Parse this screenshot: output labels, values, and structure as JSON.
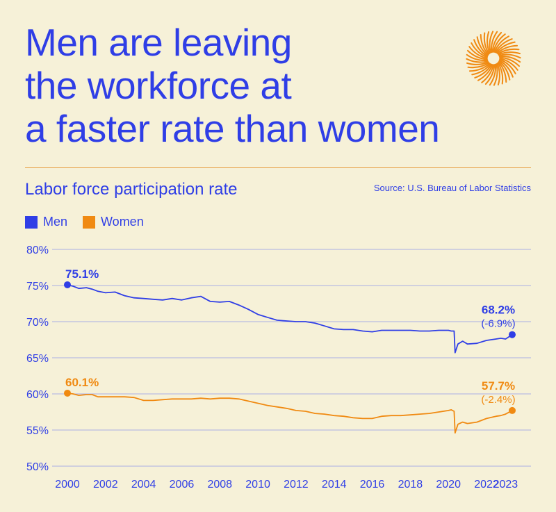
{
  "header": {
    "title_lines": [
      "Men are leaving",
      "the workforce at",
      "a faster rate than women"
    ],
    "subtitle": "Labor force participation rate",
    "source": "Source: U.S. Bureau of Labor Statistics"
  },
  "colors": {
    "men": "#2f3ee6",
    "women": "#f08a12",
    "background": "#f6f1d8",
    "rule": "#e8a146",
    "logo": "#f08a12"
  },
  "icons": {
    "logo": "sunburst-logo-icon"
  },
  "legend": [
    {
      "label": "Men",
      "color": "#2f3ee6"
    },
    {
      "label": "Women",
      "color": "#f08a12"
    }
  ],
  "chart_data": {
    "type": "line",
    "title": "Labor force participation rate",
    "xlabel": "",
    "ylabel": "",
    "xlim": [
      2000,
      2023.35
    ],
    "ylim": [
      50,
      80
    ],
    "yticks": [
      80,
      75,
      70,
      65,
      60,
      55,
      50
    ],
    "ytick_labels": [
      "80%",
      "75%",
      "70%",
      "65%",
      "60%",
      "55%",
      "50%"
    ],
    "xticks": [
      2000,
      2002,
      2004,
      2006,
      2008,
      2010,
      2012,
      2014,
      2016,
      2018,
      2020,
      2022,
      2023
    ],
    "xtick_labels": [
      "2000",
      "2002",
      "2004",
      "2006",
      "2008",
      "2010",
      "2012",
      "2014",
      "2016",
      "2018",
      "2020",
      "2022",
      "2023"
    ],
    "grid": true,
    "series": [
      {
        "name": "Men",
        "color": "#2f3ee6",
        "points": [
          [
            2000.0,
            75.1
          ],
          [
            2000.3,
            74.9
          ],
          [
            2000.6,
            74.6
          ],
          [
            2001.0,
            74.7
          ],
          [
            2001.3,
            74.5
          ],
          [
            2001.6,
            74.2
          ],
          [
            2002.0,
            74.0
          ],
          [
            2002.5,
            74.1
          ],
          [
            2003.0,
            73.6
          ],
          [
            2003.5,
            73.3
          ],
          [
            2004.0,
            73.2
          ],
          [
            2004.5,
            73.1
          ],
          [
            2005.0,
            73.0
          ],
          [
            2005.5,
            73.2
          ],
          [
            2006.0,
            73.0
          ],
          [
            2006.5,
            73.3
          ],
          [
            2007.0,
            73.5
          ],
          [
            2007.5,
            72.8
          ],
          [
            2008.0,
            72.7
          ],
          [
            2008.5,
            72.8
          ],
          [
            2009.0,
            72.3
          ],
          [
            2009.5,
            71.7
          ],
          [
            2010.0,
            71.0
          ],
          [
            2010.5,
            70.6
          ],
          [
            2011.0,
            70.2
          ],
          [
            2011.5,
            70.1
          ],
          [
            2012.0,
            70.0
          ],
          [
            2012.5,
            70.0
          ],
          [
            2013.0,
            69.8
          ],
          [
            2013.5,
            69.4
          ],
          [
            2014.0,
            69.0
          ],
          [
            2014.5,
            68.9
          ],
          [
            2015.0,
            68.9
          ],
          [
            2015.5,
            68.7
          ],
          [
            2016.0,
            68.6
          ],
          [
            2016.5,
            68.8
          ],
          [
            2017.0,
            68.8
          ],
          [
            2017.5,
            68.8
          ],
          [
            2018.0,
            68.8
          ],
          [
            2018.5,
            68.7
          ],
          [
            2019.0,
            68.7
          ],
          [
            2019.5,
            68.8
          ],
          [
            2020.0,
            68.8
          ],
          [
            2020.15,
            68.7
          ],
          [
            2020.3,
            68.7
          ],
          [
            2020.35,
            65.7
          ],
          [
            2020.5,
            66.9
          ],
          [
            2020.75,
            67.3
          ],
          [
            2021.0,
            66.9
          ],
          [
            2021.5,
            67.0
          ],
          [
            2022.0,
            67.4
          ],
          [
            2022.5,
            67.6
          ],
          [
            2022.75,
            67.7
          ],
          [
            2023.0,
            67.6
          ],
          [
            2023.35,
            68.2
          ]
        ],
        "start_label": "75.1%",
        "end_label": "68.2%",
        "change_label": "(-6.9%)"
      },
      {
        "name": "Women",
        "color": "#f08a12",
        "points": [
          [
            2000.0,
            60.1
          ],
          [
            2000.3,
            60.0
          ],
          [
            2000.6,
            59.8
          ],
          [
            2001.0,
            59.9
          ],
          [
            2001.3,
            59.9
          ],
          [
            2001.6,
            59.6
          ],
          [
            2002.0,
            59.6
          ],
          [
            2002.5,
            59.6
          ],
          [
            2003.0,
            59.6
          ],
          [
            2003.5,
            59.5
          ],
          [
            2004.0,
            59.1
          ],
          [
            2004.5,
            59.1
          ],
          [
            2005.0,
            59.2
          ],
          [
            2005.5,
            59.3
          ],
          [
            2006.0,
            59.3
          ],
          [
            2006.5,
            59.3
          ],
          [
            2007.0,
            59.4
          ],
          [
            2007.5,
            59.3
          ],
          [
            2008.0,
            59.4
          ],
          [
            2008.5,
            59.4
          ],
          [
            2009.0,
            59.3
          ],
          [
            2009.5,
            59.0
          ],
          [
            2010.0,
            58.7
          ],
          [
            2010.5,
            58.4
          ],
          [
            2011.0,
            58.2
          ],
          [
            2011.5,
            58.0
          ],
          [
            2012.0,
            57.7
          ],
          [
            2012.5,
            57.6
          ],
          [
            2013.0,
            57.3
          ],
          [
            2013.5,
            57.2
          ],
          [
            2014.0,
            57.0
          ],
          [
            2014.5,
            56.9
          ],
          [
            2015.0,
            56.7
          ],
          [
            2015.5,
            56.6
          ],
          [
            2016.0,
            56.6
          ],
          [
            2016.5,
            56.9
          ],
          [
            2017.0,
            57.0
          ],
          [
            2017.5,
            57.0
          ],
          [
            2018.0,
            57.1
          ],
          [
            2018.5,
            57.2
          ],
          [
            2019.0,
            57.3
          ],
          [
            2019.5,
            57.5
          ],
          [
            2020.0,
            57.7
          ],
          [
            2020.15,
            57.8
          ],
          [
            2020.3,
            57.6
          ],
          [
            2020.35,
            54.6
          ],
          [
            2020.5,
            55.8
          ],
          [
            2020.75,
            56.1
          ],
          [
            2021.0,
            55.9
          ],
          [
            2021.5,
            56.1
          ],
          [
            2022.0,
            56.6
          ],
          [
            2022.5,
            56.9
          ],
          [
            2022.75,
            57.0
          ],
          [
            2023.0,
            57.2
          ],
          [
            2023.35,
            57.7
          ]
        ],
        "start_label": "60.1%",
        "end_label": "57.7%",
        "change_label": "(-2.4%)"
      }
    ]
  }
}
